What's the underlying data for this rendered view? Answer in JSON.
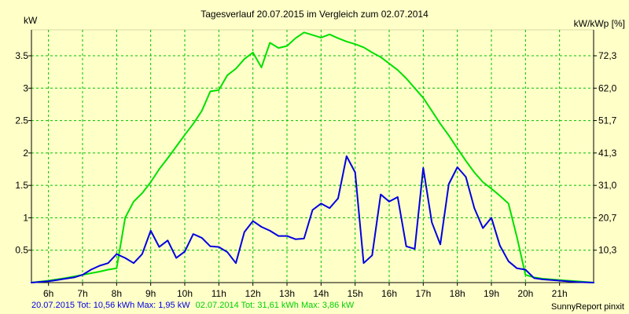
{
  "chart_data": {
    "type": "line",
    "title": "Tagesverlauf 20.07.2015 im Vergleich zum 02.07.2014",
    "ylabel_left": "kW",
    "ylabel_right": "kW/kWp [%]",
    "xlim": [
      5.5,
      22.0
    ],
    "ylim": [
      0,
      3.9
    ],
    "x_ticks": [
      {
        "x": 6,
        "label": "6h"
      },
      {
        "x": 7,
        "label": "7h"
      },
      {
        "x": 8,
        "label": "8h"
      },
      {
        "x": 9,
        "label": "9h"
      },
      {
        "x": 10,
        "label": "10h"
      },
      {
        "x": 11,
        "label": "11h"
      },
      {
        "x": 12,
        "label": "12h"
      },
      {
        "x": 13,
        "label": "13h"
      },
      {
        "x": 14,
        "label": "14h"
      },
      {
        "x": 15,
        "label": "15h"
      },
      {
        "x": 16,
        "label": "16h"
      },
      {
        "x": 17,
        "label": "17h"
      },
      {
        "x": 18,
        "label": "18h"
      },
      {
        "x": 19,
        "label": "19h"
      },
      {
        "x": 20,
        "label": "20h"
      },
      {
        "x": 21,
        "label": "21h"
      }
    ],
    "y_ticks_left": [
      {
        "y": 0.5,
        "label": "0.5"
      },
      {
        "y": 1,
        "label": "1"
      },
      {
        "y": 1.5,
        "label": "1.5"
      },
      {
        "y": 2,
        "label": "2"
      },
      {
        "y": 2.5,
        "label": "2.5"
      },
      {
        "y": 3,
        "label": "3"
      },
      {
        "y": 3.5,
        "label": "3.5"
      }
    ],
    "y_ticks_right": [
      {
        "y": 0.5,
        "label": "10,3"
      },
      {
        "y": 1,
        "label": "20,7"
      },
      {
        "y": 1.5,
        "label": "31,0"
      },
      {
        "y": 2,
        "label": "41,3"
      },
      {
        "y": 2.5,
        "label": "51,7"
      },
      {
        "y": 3,
        "label": "62,0"
      },
      {
        "y": 3.5,
        "label": "72,3"
      }
    ],
    "grid": true,
    "series": [
      {
        "name": "02.07.2014",
        "color": "#00e000",
        "points": [
          [
            5.5,
            0.0
          ],
          [
            6.0,
            0.03
          ],
          [
            6.5,
            0.07
          ],
          [
            7.0,
            0.12
          ],
          [
            7.5,
            0.17
          ],
          [
            7.75,
            0.2
          ],
          [
            8.0,
            0.22
          ],
          [
            8.25,
            1.0
          ],
          [
            8.5,
            1.25
          ],
          [
            8.75,
            1.38
          ],
          [
            9.0,
            1.55
          ],
          [
            9.25,
            1.75
          ],
          [
            9.5,
            1.92
          ],
          [
            9.75,
            2.1
          ],
          [
            10.0,
            2.28
          ],
          [
            10.25,
            2.45
          ],
          [
            10.5,
            2.65
          ],
          [
            10.75,
            2.95
          ],
          [
            11.0,
            2.97
          ],
          [
            11.25,
            3.2
          ],
          [
            11.5,
            3.3
          ],
          [
            11.75,
            3.45
          ],
          [
            12.0,
            3.55
          ],
          [
            12.25,
            3.32
          ],
          [
            12.5,
            3.7
          ],
          [
            12.75,
            3.62
          ],
          [
            13.0,
            3.65
          ],
          [
            13.25,
            3.77
          ],
          [
            13.5,
            3.86
          ],
          [
            13.75,
            3.82
          ],
          [
            14.0,
            3.78
          ],
          [
            14.25,
            3.83
          ],
          [
            14.5,
            3.77
          ],
          [
            14.75,
            3.72
          ],
          [
            15.0,
            3.68
          ],
          [
            15.25,
            3.63
          ],
          [
            15.5,
            3.55
          ],
          [
            15.75,
            3.48
          ],
          [
            16.0,
            3.38
          ],
          [
            16.25,
            3.28
          ],
          [
            16.5,
            3.15
          ],
          [
            16.75,
            3.0
          ],
          [
            17.0,
            2.85
          ],
          [
            17.25,
            2.65
          ],
          [
            17.5,
            2.45
          ],
          [
            17.75,
            2.27
          ],
          [
            18.0,
            2.07
          ],
          [
            18.25,
            1.88
          ],
          [
            18.5,
            1.7
          ],
          [
            18.75,
            1.55
          ],
          [
            19.0,
            1.45
          ],
          [
            19.25,
            1.34
          ],
          [
            19.5,
            1.22
          ],
          [
            19.75,
            0.7
          ],
          [
            20.0,
            0.12
          ],
          [
            20.25,
            0.08
          ],
          [
            20.5,
            0.06
          ],
          [
            21.0,
            0.04
          ],
          [
            21.5,
            0.02
          ],
          [
            22.0,
            0.0
          ]
        ]
      },
      {
        "name": "20.07.2015",
        "color": "#0000e0",
        "points": [
          [
            5.5,
            0.0
          ],
          [
            6.0,
            0.02
          ],
          [
            6.25,
            0.04
          ],
          [
            6.5,
            0.06
          ],
          [
            6.75,
            0.08
          ],
          [
            7.0,
            0.12
          ],
          [
            7.25,
            0.2
          ],
          [
            7.5,
            0.26
          ],
          [
            7.75,
            0.3
          ],
          [
            8.0,
            0.44
          ],
          [
            8.25,
            0.38
          ],
          [
            8.5,
            0.3
          ],
          [
            8.75,
            0.44
          ],
          [
            9.0,
            0.8
          ],
          [
            9.25,
            0.55
          ],
          [
            9.5,
            0.65
          ],
          [
            9.75,
            0.38
          ],
          [
            10.0,
            0.48
          ],
          [
            10.25,
            0.75
          ],
          [
            10.5,
            0.69
          ],
          [
            10.75,
            0.56
          ],
          [
            11.0,
            0.55
          ],
          [
            11.25,
            0.47
          ],
          [
            11.5,
            0.3
          ],
          [
            11.75,
            0.78
          ],
          [
            12.0,
            0.95
          ],
          [
            12.25,
            0.86
          ],
          [
            12.5,
            0.8
          ],
          [
            12.75,
            0.72
          ],
          [
            13.0,
            0.72
          ],
          [
            13.25,
            0.67
          ],
          [
            13.5,
            0.68
          ],
          [
            13.75,
            1.12
          ],
          [
            14.0,
            1.22
          ],
          [
            14.25,
            1.15
          ],
          [
            14.5,
            1.3
          ],
          [
            14.75,
            1.95
          ],
          [
            15.0,
            1.7
          ],
          [
            15.25,
            0.3
          ],
          [
            15.5,
            0.42
          ],
          [
            15.75,
            1.36
          ],
          [
            16.0,
            1.25
          ],
          [
            16.25,
            1.32
          ],
          [
            16.5,
            0.56
          ],
          [
            16.75,
            0.52
          ],
          [
            17.0,
            1.77
          ],
          [
            17.25,
            0.93
          ],
          [
            17.5,
            0.59
          ],
          [
            17.75,
            1.52
          ],
          [
            18.0,
            1.78
          ],
          [
            18.25,
            1.63
          ],
          [
            18.5,
            1.15
          ],
          [
            18.75,
            0.84
          ],
          [
            19.0,
            1.0
          ],
          [
            19.25,
            0.57
          ],
          [
            19.5,
            0.33
          ],
          [
            19.75,
            0.22
          ],
          [
            20.0,
            0.2
          ],
          [
            20.25,
            0.07
          ],
          [
            20.5,
            0.05
          ],
          [
            21.0,
            0.03
          ],
          [
            21.5,
            0.01
          ],
          [
            22.0,
            0.0
          ]
        ]
      }
    ]
  },
  "footer": {
    "left_text": "20.07.2015 Tot: 10,56 kWh Max: 1,95 kW",
    "left_color": "#0000e0",
    "middle_text": "02.07.2014 Tot: 31,61 kWh Max: 3,86 kW",
    "middle_color": "#00d000",
    "right_text": "SunnyReport pinxit"
  },
  "colors": {
    "background": "#ffffc8",
    "grid": "#00c000",
    "axis": "#000000"
  }
}
